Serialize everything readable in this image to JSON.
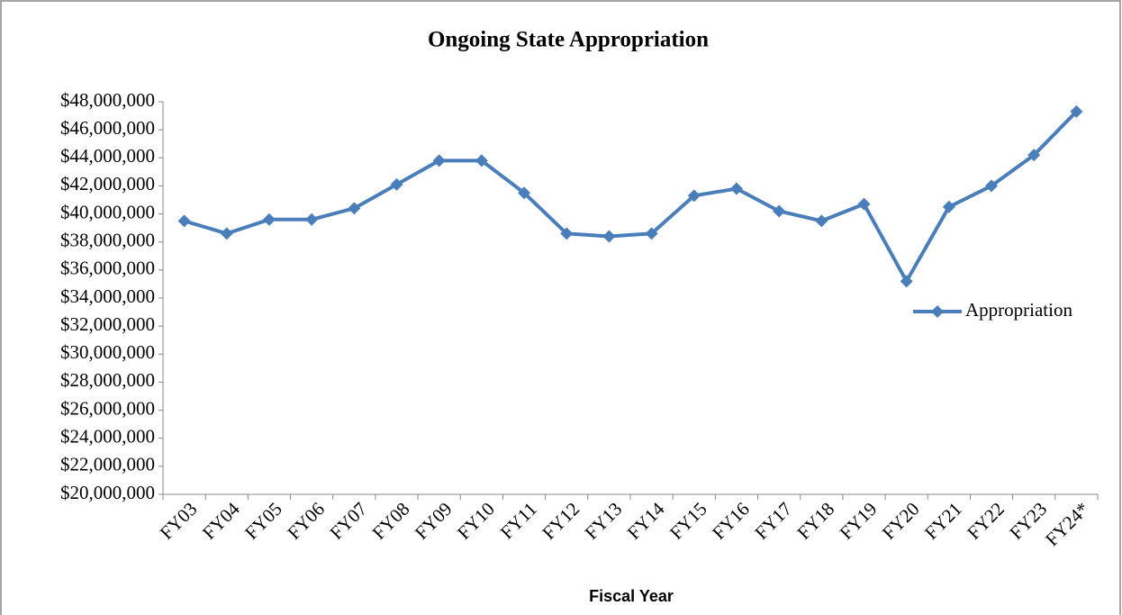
{
  "chart_data": {
    "type": "line",
    "title": "Ongoing State Appropriation",
    "x_label": "Fiscal Year",
    "categories": [
      "FY03",
      "FY04",
      "FY05",
      "FY06",
      "FY07",
      "FY08",
      "FY09",
      "FY10",
      "FY11",
      "FY12",
      "FY13",
      "FY14",
      "FY15",
      "FY16",
      "FY17",
      "FY18",
      "FY19",
      "FY20",
      "FY21",
      "FY22",
      "FY23",
      "FY24*"
    ],
    "series": [
      {
        "name": "Appropriation",
        "color": "#4a7ebb",
        "values": [
          39500000,
          38600000,
          39600000,
          39600000,
          40400000,
          42100000,
          43800000,
          43800000,
          41500000,
          38600000,
          38400000,
          38600000,
          41300000,
          41800000,
          40200000,
          39500000,
          40700000,
          35200000,
          40500000,
          42000000,
          44200000,
          47300000
        ]
      }
    ],
    "ylim": [
      20000000,
      48000000
    ],
    "yticks": [
      {
        "value": 20000000,
        "label": "$20,000,000"
      },
      {
        "value": 22000000,
        "label": "$22,000,000"
      },
      {
        "value": 24000000,
        "label": "$24,000,000"
      },
      {
        "value": 26000000,
        "label": "$26,000,000"
      },
      {
        "value": 28000000,
        "label": "$28,000,000"
      },
      {
        "value": 30000000,
        "label": "$30,000,000"
      },
      {
        "value": 32000000,
        "label": "$32,000,000"
      },
      {
        "value": 34000000,
        "label": "$34,000,000"
      },
      {
        "value": 36000000,
        "label": "$36,000,000"
      },
      {
        "value": 38000000,
        "label": "$38,000,000"
      },
      {
        "value": 40000000,
        "label": "$40,000,000"
      },
      {
        "value": 42000000,
        "label": "$42,000,000"
      },
      {
        "value": 44000000,
        "label": "$44,000,000"
      },
      {
        "value": 46000000,
        "label": "$46,000,000"
      },
      {
        "value": 48000000,
        "label": "$48,000,000"
      }
    ],
    "grid": false,
    "legend": "right"
  }
}
